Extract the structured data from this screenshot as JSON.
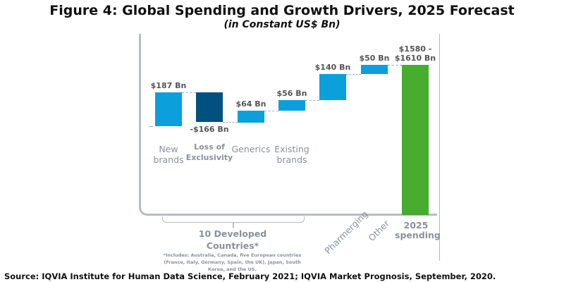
{
  "title": "Figure 4: Global Spending and Growth Drivers, 2025 Forecast",
  "subtitle": "(in Constant US$ Bn)",
  "chart_data": {
    "type": "waterfall",
    "categories": [
      "New brands",
      "Loss of Exclusivity",
      "Generics",
      "Existing brands",
      "Pharmerging",
      "Other",
      "2025 spending"
    ],
    "values": [
      187,
      -166,
      64,
      56,
      140,
      50,
      null
    ],
    "total_range": [
      1580,
      1610
    ],
    "data_labels": [
      "$187 Bn",
      "-$166 Bn",
      "$64 Bn",
      "$56 Bn",
      "$140 Bn",
      "$50 Bn",
      "$1580 - $1610 Bn"
    ],
    "colors": {
      "increase": "#0b9fdc",
      "decrease": "#01517f",
      "total": "#46ad2f"
    },
    "group_label": "10 Developed Countries*",
    "footnote": "*Includes: Australia,  Canada, five European countries (France, Italy, Germany, Spain, the UK), Japan, South Korea, and the US."
  },
  "labels": {
    "new_a": "New",
    "new_b": "brands",
    "loe_a": "Loss of",
    "loe_b": "Exclusivity",
    "gen": "Generics",
    "ex_a": "Existing",
    "ex_b": "brands",
    "phar": "Pharmerging",
    "other": "Other",
    "tot_a": "2025",
    "tot_b": "spending",
    "total_a": "$1580 -",
    "total_b": "$1610 Bn"
  },
  "source": "Source: IQVIA Institute for Human Data Science, February 2021; IQVIA Market Prognosis, September, 2020."
}
